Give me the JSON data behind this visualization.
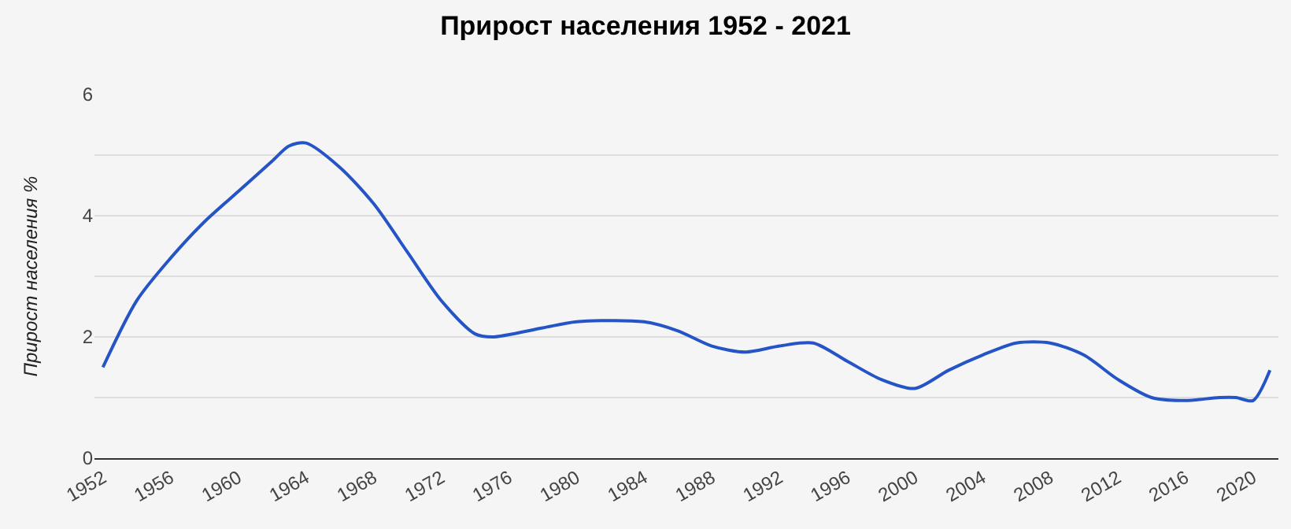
{
  "chart_data": {
    "type": "line",
    "title": "Прирост населения 1952 - 2021",
    "ylabel": "Прирост населения %",
    "x": [
      1952,
      1954,
      1956,
      1958,
      1960,
      1962,
      1963,
      1964,
      1966,
      1968,
      1970,
      1972,
      1974,
      1975,
      1978,
      1980,
      1984,
      1986,
      1988,
      1990,
      1992,
      1994,
      1996,
      1998,
      2000,
      2002,
      2004,
      2006,
      2008,
      2010,
      2012,
      2014,
      2016,
      2018,
      2019,
      2020,
      2021
    ],
    "series": [
      {
        "color": "#2554c7",
        "values": [
          1.5,
          2.6,
          3.3,
          3.9,
          4.4,
          4.9,
          5.15,
          5.2,
          4.8,
          4.2,
          3.4,
          2.6,
          2.05,
          2.0,
          2.15,
          2.25,
          2.25,
          2.1,
          1.85,
          1.75,
          1.85,
          1.9,
          1.6,
          1.3,
          1.15,
          1.45,
          1.7,
          1.9,
          1.9,
          1.7,
          1.3,
          1.0,
          0.95,
          1.0,
          1.0,
          0.95,
          1.45
        ]
      }
    ],
    "xlim": [
      1951.5,
      2021.5
    ],
    "xticks": [
      1952,
      1956,
      1960,
      1964,
      1968,
      1972,
      1976,
      1980,
      1984,
      1988,
      1992,
      1996,
      2000,
      2004,
      2008,
      2012,
      2016,
      2020
    ],
    "ylim": [
      0,
      6
    ],
    "yticks": [
      0,
      {
        "value": 1,
        "label": null
      },
      2,
      {
        "value": 3,
        "label": null
      },
      4,
      {
        "value": 5,
        "label": null
      },
      6
    ],
    "grid": "y",
    "marker": "none",
    "line_style": "solid"
  }
}
